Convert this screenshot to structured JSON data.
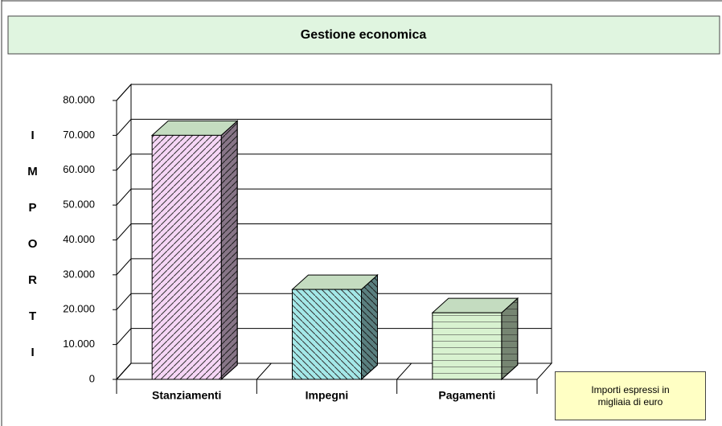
{
  "chart_data": {
    "type": "bar3d",
    "title": "Gestione economica",
    "y_label": "IMPORTI",
    "categories": [
      "Stanziamenti",
      "Impegni",
      "Pagamenti"
    ],
    "values": [
      70000,
      25800,
      19100
    ],
    "colors": [
      "#f6d6f6",
      "#a4e8e8",
      "#d8f2d0"
    ],
    "ylim": [
      0,
      80000
    ],
    "yticks": [
      0,
      {
        "value": 10000,
        "label": "10.000"
      },
      {
        "value": 20000,
        "label": "20.000"
      },
      {
        "value": 30000,
        "label": "30.000"
      },
      {
        "value": 40000,
        "label": "40.000"
      },
      {
        "value": 50000,
        "label": "50.000"
      },
      {
        "value": 60000,
        "label": "60.000"
      },
      {
        "value": 70000,
        "label": "70.000"
      },
      {
        "value": 80000,
        "label": "80.000"
      }
    ],
    "grid": true,
    "note": "Importi espressi in migliaia di euro"
  }
}
